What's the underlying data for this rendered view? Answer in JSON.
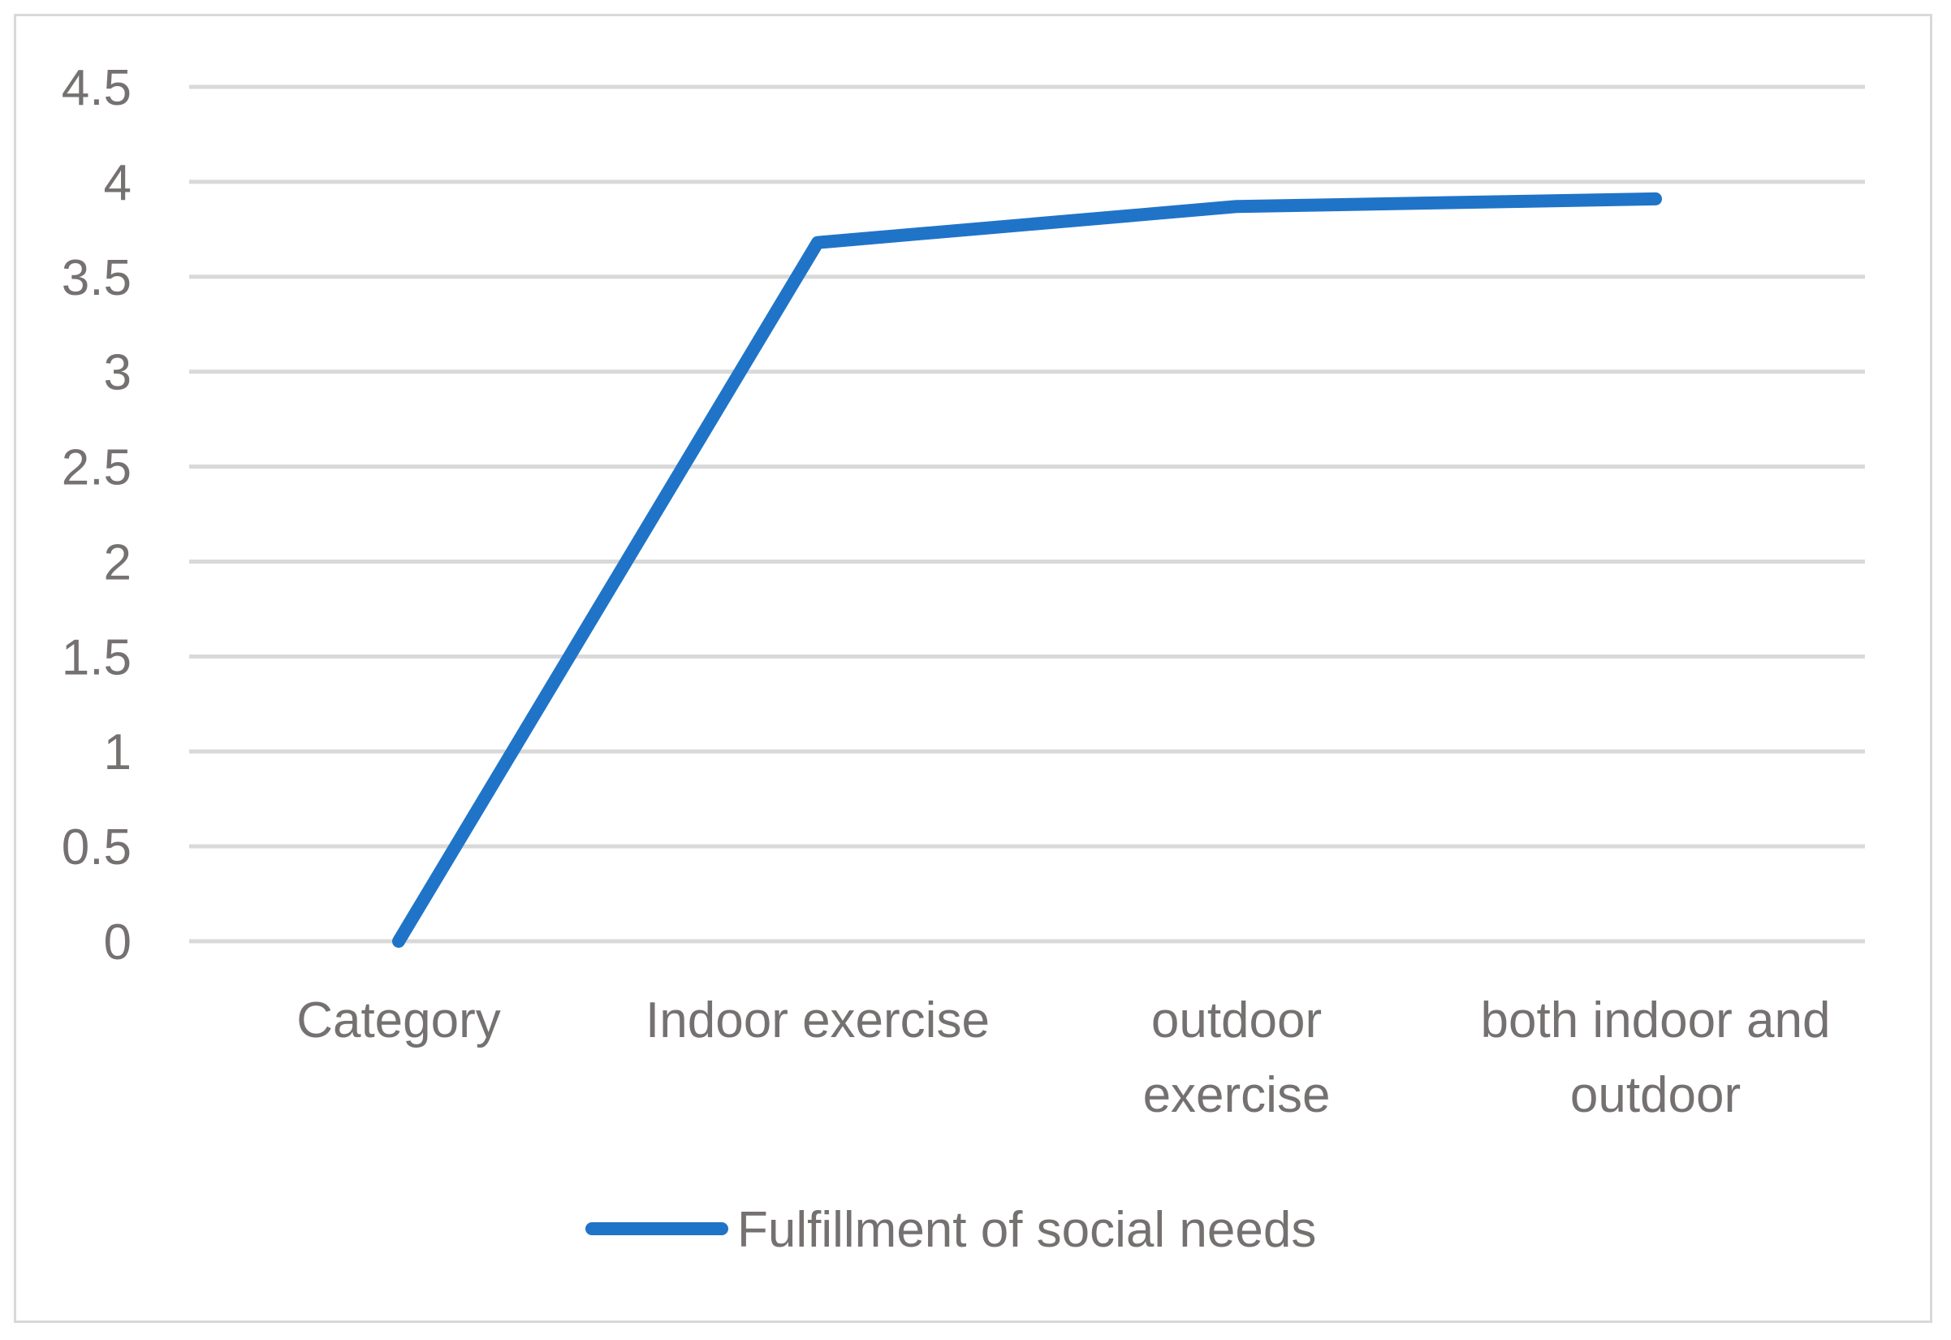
{
  "chart_data": {
    "type": "line",
    "categories": [
      [
        "Category"
      ],
      [
        "Indoor exercise"
      ],
      [
        "outdoor",
        "exercise"
      ],
      [
        "both indoor and",
        "outdoor"
      ]
    ],
    "series": [
      {
        "name": "Fulfillment of social needs",
        "values": [
          0,
          3.68,
          3.87,
          3.91
        ],
        "color": "#1f74c8"
      }
    ],
    "yticks": [
      "0",
      "0.5",
      "1",
      "1.5",
      "2",
      "2.5",
      "3",
      "3.5",
      "4",
      "4.5"
    ],
    "ylim": [
      0,
      4.5
    ],
    "grid": true,
    "legend": "bottom",
    "colors": {
      "grid": "#d9d9d9",
      "text": "#767171",
      "border": "#d9d9d9"
    }
  }
}
